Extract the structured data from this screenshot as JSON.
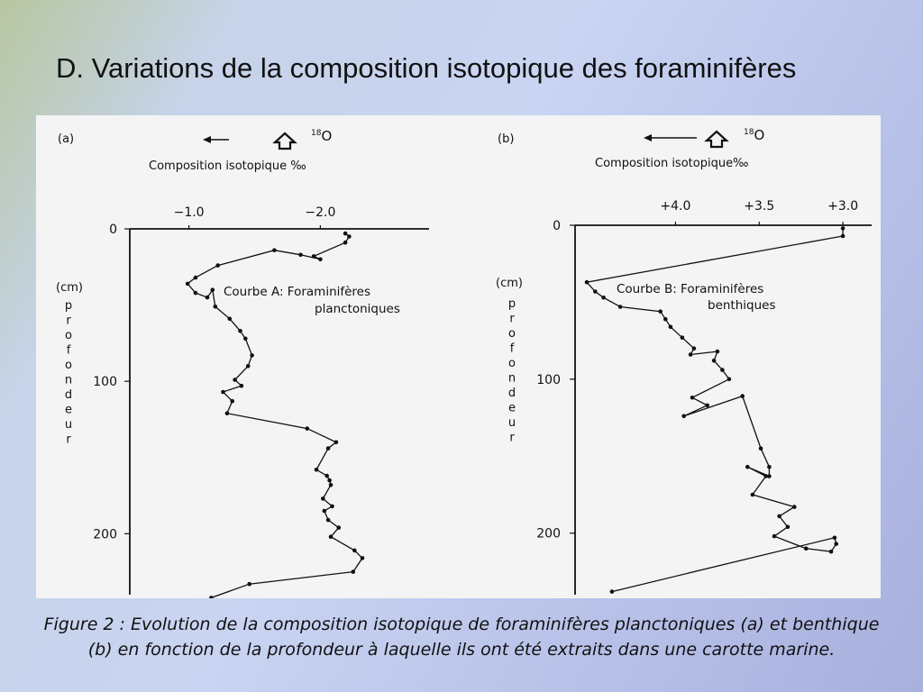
{
  "slide": {
    "title": "D. Variations de la composition isotopique des foraminifères",
    "caption_line1": "Figure 2 : Evolution de la composition isotopique de foraminifères planctoniques (a) et benthique",
    "caption_line2": "(b) en fonction de la profondeur à laquelle ils ont été extraits dans une carotte marine."
  },
  "chart_data": [
    {
      "type": "line",
      "panel_label": "(a)",
      "isotope_label": "18O",
      "isotope_mass": "18",
      "isotope_symbol": "O",
      "xlabel": "Composition  isotopique ‰",
      "ylabel_unit": "(cm)",
      "ylabel_letters": [
        "p",
        "r",
        "o",
        "f",
        "o",
        "n",
        "d",
        "e",
        "u",
        "r"
      ],
      "x_ticks": [
        "−1.0",
        "−2.0"
      ],
      "x_tick_values": [
        -1.0,
        -2.0
      ],
      "y_ticks": [
        "0",
        "100",
        "200"
      ],
      "y_tick_values": [
        0,
        100,
        200
      ],
      "xlim": [
        -0.55,
        -2.8
      ],
      "ylim": [
        0,
        240
      ],
      "annotation_line1": "Courbe A: Foraminifères",
      "annotation_line2": "planctoniques",
      "series": [
        {
          "x": [
            -2.19,
            -2.22,
            -2.19,
            -1.95,
            -2.0,
            -1.85,
            -1.65,
            -1.22,
            -1.05,
            -0.99,
            -1.05,
            -1.14,
            -1.18,
            -1.2,
            -1.31,
            -1.39,
            -1.43,
            -1.48,
            -1.45,
            -1.35,
            -1.4,
            -1.26,
            -1.33,
            -1.29,
            -1.9,
            -2.12,
            -2.06,
            -1.97,
            -2.05,
            -2.07,
            -2.08,
            -2.02,
            -2.09,
            -2.03,
            -2.06,
            -2.14,
            -2.08,
            -2.26,
            -2.32,
            -2.25,
            -1.46,
            -1.17
          ],
          "y": [
            3,
            5,
            9,
            18,
            20,
            17,
            14,
            24,
            32,
            36,
            42,
            45,
            40,
            51,
            59,
            67,
            72,
            83,
            90,
            99,
            103,
            107,
            113,
            121,
            131,
            140,
            144,
            158,
            162,
            165,
            168,
            177,
            182,
            185,
            191,
            196,
            202,
            211,
            216,
            225,
            233,
            242
          ]
        }
      ]
    },
    {
      "type": "line",
      "panel_label": "(b)",
      "isotope_label": "18O",
      "isotope_mass": "18",
      "isotope_symbol": "O",
      "xlabel": "Composition  isotopique‰",
      "ylabel_unit": "(cm)",
      "ylabel_letters": [
        "p",
        "r",
        "o",
        "f",
        "o",
        "n",
        "d",
        "e",
        "u",
        "r"
      ],
      "x_ticks": [
        "+4.0",
        "+3.5",
        "+3.0"
      ],
      "x_tick_values": [
        4.0,
        3.5,
        3.0
      ],
      "y_ticks": [
        "0",
        "100",
        "200"
      ],
      "y_tick_values": [
        0,
        100,
        200
      ],
      "xlim": [
        4.6,
        2.85
      ],
      "ylim": [
        0,
        240
      ],
      "annotation_line1": "Courbe B: Foraminifères",
      "annotation_line2": "benthiques",
      "series": [
        {
          "x": [
            3.0,
            3.0,
            4.53,
            4.48,
            4.43,
            4.33,
            4.09,
            4.06,
            4.03,
            3.96,
            3.89,
            3.91,
            3.75,
            3.77,
            3.72,
            3.68,
            3.9,
            3.81,
            3.95,
            3.6,
            3.49,
            3.44,
            3.44,
            3.57,
            3.46,
            3.54,
            3.29,
            3.38,
            3.33,
            3.41,
            3.22,
            3.07,
            3.04,
            3.05,
            4.38
          ],
          "y": [
            2,
            7,
            37,
            43,
            47,
            53,
            56,
            61,
            66,
            73,
            80,
            84,
            82,
            88,
            94,
            100,
            112,
            117,
            124,
            111,
            145,
            157,
            163,
            157,
            163,
            175,
            183,
            189,
            196,
            202,
            210,
            212,
            207,
            203,
            238
          ]
        }
      ]
    }
  ]
}
